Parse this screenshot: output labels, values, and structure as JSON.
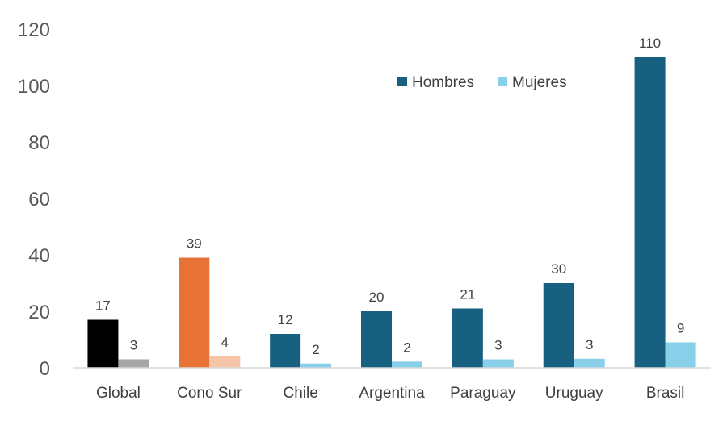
{
  "chart_data": {
    "type": "bar",
    "title": "",
    "xlabel": "",
    "ylabel": "",
    "ylim": [
      0,
      120
    ],
    "yticks": [
      "0",
      "20",
      "40",
      "60",
      "80",
      "100",
      "120"
    ],
    "grid": false,
    "legend_position": "top-right",
    "categories": [
      "Global",
      "Cono Sur",
      "Chile",
      "Argentina",
      "Paraguay",
      "Uruguay",
      "Brasil"
    ],
    "series": [
      {
        "name": "Hombres",
        "values": [
          17,
          39,
          12,
          20,
          21,
          30,
          110
        ],
        "labels": [
          "17",
          "39",
          "12",
          "20",
          "21",
          "30",
          "110"
        ],
        "color": "#17607f",
        "point_colors": [
          "#000000",
          "#e87336",
          "#17607f",
          "#17607f",
          "#17607f",
          "#17607f",
          "#17607f"
        ]
      },
      {
        "name": "Mujeres",
        "values": [
          3,
          4,
          1.5,
          2.2,
          3,
          3.2,
          9
        ],
        "labels": [
          "3",
          "4",
          "2",
          "2",
          "3",
          "3",
          "9"
        ],
        "color": "#88cfea",
        "point_colors": [
          "#a6a6a6",
          "#f6c4a7",
          "#88cfea",
          "#88cfea",
          "#88cfea",
          "#88cfea",
          "#88cfea"
        ]
      }
    ]
  }
}
